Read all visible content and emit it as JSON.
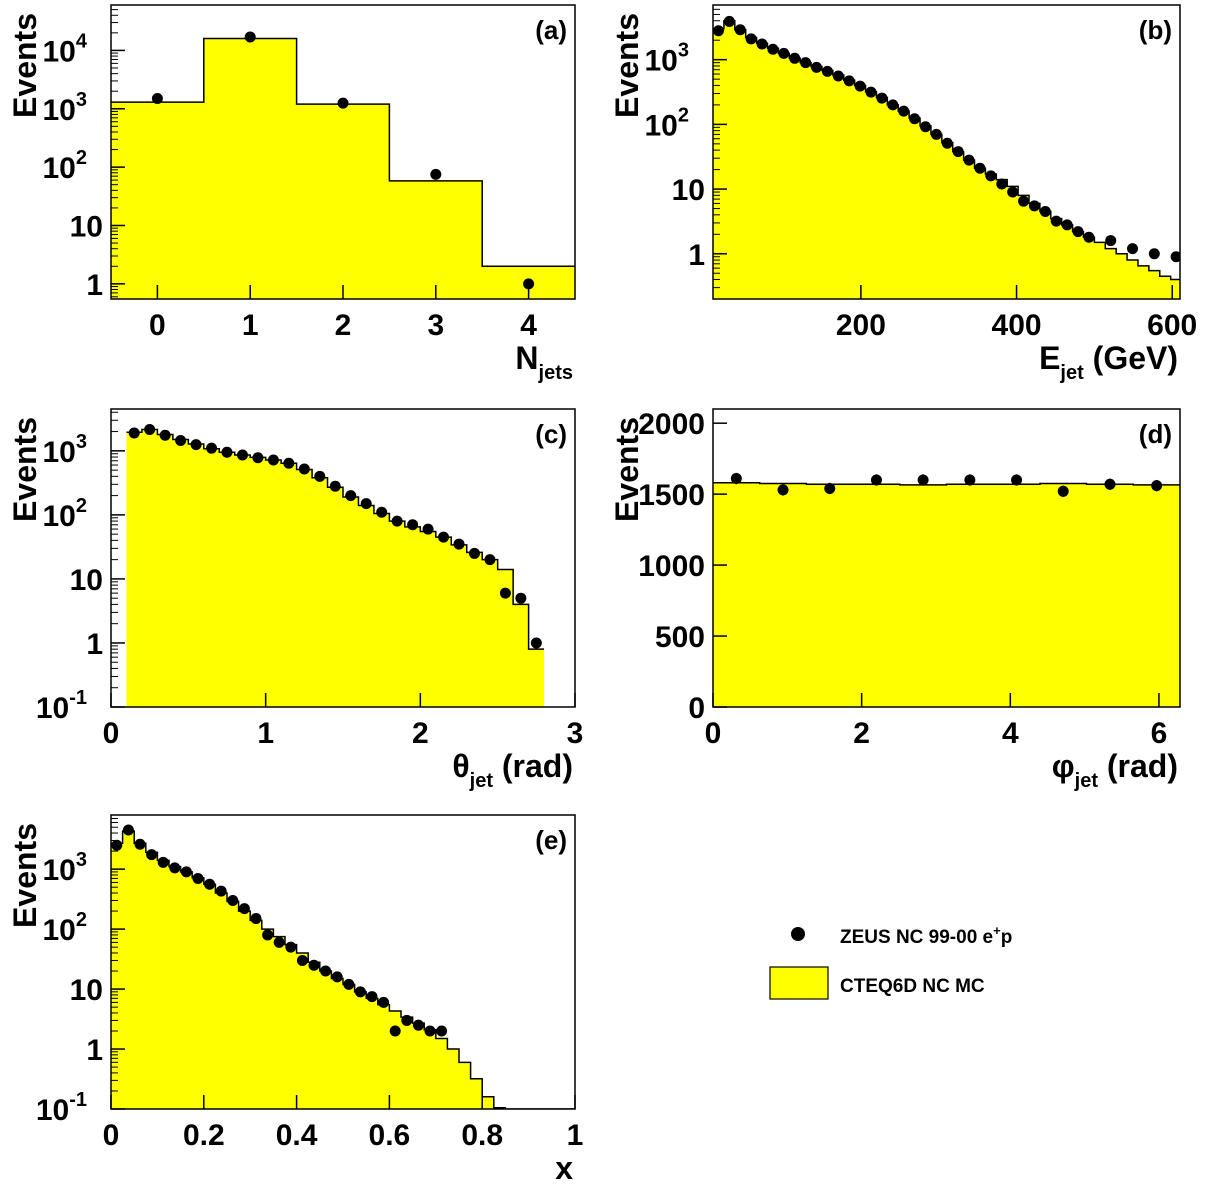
{
  "colors": {
    "mc_fill": "#ffff00",
    "mc_line": "#000000",
    "data_marker": "#000000",
    "frame": "#000000"
  },
  "legend": {
    "placement": "right of panel (e)",
    "data_label": "ZEUS NC 99-00 e",
    "data_label_sup": "+",
    "data_label_tail": "p",
    "mc_label": "CTEQ6D NC MC"
  },
  "chart_data": [
    {
      "id": "a",
      "type": "bar",
      "panel_label": "(a)",
      "xlabel": "N",
      "xlabel_sub": "jets",
      "xlabel_tail": "",
      "ylabel": "Events",
      "yscale": "log",
      "xlim": [
        -0.5,
        4.5
      ],
      "ylim": [
        0.55,
        60000
      ],
      "xticks": [
        "0",
        "1",
        "2",
        "3",
        "4"
      ],
      "yticks": [
        {
          "v": 1,
          "t": "1"
        },
        {
          "v": 10,
          "t": "10"
        },
        {
          "v": 100,
          "t": "10",
          "e": "2"
        },
        {
          "v": 1000,
          "t": "10",
          "e": "3"
        },
        {
          "v": 10000,
          "t": "10",
          "e": "4"
        }
      ],
      "mc": {
        "edges": [
          -0.5,
          0.5,
          1.5,
          2.5,
          3.5,
          4.5
        ],
        "values": [
          1300,
          16000,
          1200,
          58,
          2
        ]
      },
      "data": {
        "x": [
          0,
          1,
          2,
          3,
          4
        ],
        "y": [
          1500,
          17000,
          1250,
          75,
          1
        ],
        "err_lo": [
          0,
          0,
          0,
          0,
          0
        ],
        "err_hi": [
          0,
          0,
          0,
          0,
          0
        ]
      }
    },
    {
      "id": "b",
      "type": "bar",
      "panel_label": "(b)",
      "xlabel": "E",
      "xlabel_sub": "jet",
      "xlabel_tail": " (GeV)",
      "ylabel": "Events",
      "yscale": "log",
      "xlim": [
        10,
        610
      ],
      "ylim": [
        0.2,
        7000
      ],
      "xticks": [
        "200",
        "400",
        "600"
      ],
      "yticks": [
        {
          "v": 1,
          "t": "1"
        },
        {
          "v": 10,
          "t": "10"
        },
        {
          "v": 100,
          "t": "10",
          "e": "2"
        },
        {
          "v": 1000,
          "t": "10",
          "e": "3"
        }
      ],
      "mc": {
        "edges": [
          10,
          24,
          38,
          52,
          66,
          80,
          94,
          108,
          122,
          136,
          150,
          164,
          178,
          192,
          206,
          220,
          234,
          248,
          262,
          276,
          290,
          304,
          318,
          332,
          346,
          360,
          374,
          388,
          402,
          416,
          430,
          444,
          458,
          472,
          486,
          500,
          514,
          528,
          542,
          556,
          570,
          584,
          598,
          610
        ],
        "values": [
          3000,
          4000,
          2900,
          2200,
          1800,
          1500,
          1250,
          1050,
          900,
          780,
          680,
          580,
          480,
          400,
          320,
          260,
          200,
          160,
          125,
          95,
          70,
          52,
          38,
          28,
          21,
          17,
          14,
          11,
          8,
          6,
          4.5,
          3.5,
          2.8,
          2.2,
          1.8,
          1.5,
          1.2,
          1.0,
          0.8,
          0.65,
          0.55,
          0.45,
          0.4
        ]
      },
      "data": {
        "x": [
          17,
          31,
          45,
          59,
          73,
          87,
          101,
          115,
          129,
          143,
          157,
          171,
          185,
          199,
          213,
          227,
          241,
          255,
          269,
          283,
          297,
          311,
          325,
          339,
          353,
          367,
          381,
          395,
          409,
          423,
          437,
          451,
          465,
          479,
          493,
          521,
          549,
          577,
          605
        ],
        "y": [
          2800,
          3900,
          2900,
          2100,
          1750,
          1450,
          1250,
          1050,
          900,
          760,
          660,
          560,
          470,
          390,
          315,
          255,
          200,
          160,
          122,
          92,
          70,
          51,
          38,
          28,
          21,
          16,
          12,
          9,
          6.5,
          5.5,
          4.5,
          3.2,
          2.8,
          2.2,
          1.8,
          1.6,
          1.2,
          1.0,
          0.9
        ],
        "err_lo": [
          0,
          0,
          0,
          0,
          0,
          0,
          0,
          0,
          0,
          0,
          0,
          0,
          0,
          0,
          0,
          0,
          0,
          0,
          0,
          0,
          0,
          0,
          0,
          0,
          0,
          0,
          0,
          0,
          0,
          0,
          0,
          0,
          0,
          0,
          0,
          0,
          0,
          0,
          0
        ],
        "err_hi": [
          0,
          0,
          0,
          0,
          0,
          0,
          0,
          0,
          0,
          0,
          0,
          0,
          0,
          0,
          0,
          0,
          0,
          0,
          0,
          0,
          0,
          0,
          0,
          0,
          0,
          0,
          0,
          0,
          0,
          0,
          0,
          0,
          0,
          0,
          0,
          0,
          0,
          0,
          0
        ]
      }
    },
    {
      "id": "c",
      "type": "bar",
      "panel_label": "(c)",
      "xlabel": "θ",
      "xlabel_sub": "jet",
      "xlabel_tail": " (rad)",
      "ylabel": "Events",
      "yscale": "log",
      "xlim": [
        0,
        3
      ],
      "ylim": [
        0.1,
        4500
      ],
      "xticks": [
        "0",
        "1",
        "2",
        "3"
      ],
      "yticks": [
        {
          "v": 0.1,
          "t": "10",
          "e": "-1"
        },
        {
          "v": 1,
          "t": "1"
        },
        {
          "v": 10,
          "t": "10"
        },
        {
          "v": 100,
          "t": "10",
          "e": "2"
        },
        {
          "v": 1000,
          "t": "10",
          "e": "3"
        }
      ],
      "mc": {
        "edges": [
          0.1,
          0.2,
          0.3,
          0.4,
          0.5,
          0.6,
          0.7,
          0.8,
          0.9,
          1.0,
          1.1,
          1.2,
          1.3,
          1.4,
          1.5,
          1.6,
          1.7,
          1.8,
          1.9,
          2.0,
          2.1,
          2.2,
          2.3,
          2.4,
          2.5,
          2.6,
          2.7,
          2.8
        ],
        "values": [
          1950,
          2150,
          1800,
          1500,
          1280,
          1080,
          950,
          860,
          790,
          720,
          640,
          510,
          380,
          270,
          190,
          140,
          105,
          80,
          65,
          55,
          45,
          34,
          26,
          20,
          14,
          4,
          0.8
        ]
      },
      "data": {
        "x": [
          0.15,
          0.25,
          0.35,
          0.45,
          0.55,
          0.65,
          0.75,
          0.85,
          0.95,
          1.05,
          1.15,
          1.25,
          1.35,
          1.45,
          1.55,
          1.65,
          1.75,
          1.85,
          1.95,
          2.05,
          2.15,
          2.25,
          2.35,
          2.45,
          2.55,
          2.65,
          2.75
        ],
        "y": [
          1900,
          2150,
          1750,
          1450,
          1250,
          1100,
          950,
          860,
          780,
          720,
          640,
          520,
          400,
          280,
          200,
          150,
          110,
          80,
          70,
          60,
          45,
          35,
          25,
          20,
          6,
          5,
          1
        ],
        "err_lo": [
          0,
          0,
          0,
          0,
          0,
          0,
          0,
          0,
          0,
          0,
          0,
          0,
          0,
          0,
          0,
          0,
          0,
          0,
          0,
          0,
          0,
          0,
          0,
          0,
          0,
          0,
          0
        ],
        "err_hi": [
          0,
          0,
          0,
          0,
          0,
          0,
          0,
          0,
          0,
          0,
          0,
          0,
          0,
          0,
          0,
          0,
          0,
          0,
          0,
          0,
          0,
          0,
          0,
          0,
          0,
          0,
          0
        ]
      }
    },
    {
      "id": "d",
      "type": "bar",
      "panel_label": "(d)",
      "xlabel": "φ",
      "xlabel_sub": "jet",
      "xlabel_tail": " (rad)",
      "ylabel": "Events",
      "yscale": "linear",
      "xlim": [
        0,
        6.2832
      ],
      "ylim": [
        0,
        2100
      ],
      "xticks": [
        "0",
        "2",
        "4",
        "6"
      ],
      "yticks": [
        {
          "v": 0,
          "t": "0"
        },
        {
          "v": 500,
          "t": "500"
        },
        {
          "v": 1000,
          "t": "1000"
        },
        {
          "v": 1500,
          "t": "1500"
        },
        {
          "v": 2000,
          "t": "2000"
        }
      ],
      "mc": {
        "edges": [
          0,
          0.6283,
          1.2566,
          1.885,
          2.5133,
          3.1416,
          3.7699,
          4.3982,
          5.0265,
          5.6549,
          6.2832
        ],
        "values": [
          1580,
          1575,
          1570,
          1570,
          1565,
          1570,
          1570,
          1575,
          1570,
          1565
        ]
      },
      "data": {
        "x": [
          0.314,
          0.942,
          1.571,
          2.199,
          2.827,
          3.456,
          4.084,
          4.712,
          5.341,
          5.969
        ],
        "y": [
          1610,
          1530,
          1540,
          1600,
          1600,
          1600,
          1600,
          1520,
          1570,
          1560
        ],
        "err_lo": [
          40,
          40,
          40,
          40,
          40,
          40,
          40,
          40,
          40,
          40
        ],
        "err_hi": [
          40,
          40,
          40,
          40,
          40,
          40,
          40,
          40,
          40,
          40
        ]
      }
    },
    {
      "id": "e",
      "type": "bar",
      "panel_label": "(e)",
      "xlabel": "x",
      "xlabel_sub": "",
      "xlabel_tail": "",
      "ylabel": "Events",
      "yscale": "log",
      "xlim": [
        0,
        1
      ],
      "ylim": [
        0.1,
        8000
      ],
      "xticks": [
        "0",
        "0.2",
        "0.4",
        "0.6",
        "0.8",
        "1"
      ],
      "yticks": [
        {
          "v": 0.1,
          "t": "10",
          "e": "-1"
        },
        {
          "v": 1,
          "t": "1"
        },
        {
          "v": 10,
          "t": "10"
        },
        {
          "v": 100,
          "t": "10",
          "e": "2"
        },
        {
          "v": 1000,
          "t": "10",
          "e": "3"
        }
      ],
      "mc": {
        "edges": [
          0,
          0.025,
          0.05,
          0.075,
          0.1,
          0.125,
          0.15,
          0.175,
          0.2,
          0.225,
          0.25,
          0.275,
          0.3,
          0.325,
          0.35,
          0.375,
          0.4,
          0.425,
          0.45,
          0.475,
          0.5,
          0.525,
          0.55,
          0.575,
          0.6,
          0.625,
          0.65,
          0.675,
          0.7,
          0.725,
          0.75,
          0.775,
          0.8,
          0.825,
          0.85,
          0.875,
          0.9,
          0.925,
          0.95,
          0.975,
          1.0
        ],
        "values": [
          2700,
          4300,
          2700,
          1900,
          1400,
          1100,
          900,
          720,
          560,
          400,
          290,
          200,
          140,
          100,
          75,
          55,
          40,
          28,
          20,
          15,
          12,
          9,
          7,
          5.5,
          4.3,
          3.4,
          2.7,
          2.1,
          1.5,
          1.0,
          0.6,
          0.32,
          0.16,
          0.105,
          0.1,
          0.1,
          0.1,
          0.1,
          0.1,
          0.1
        ]
      },
      "data": {
        "x": [
          0.0125,
          0.0375,
          0.0625,
          0.0875,
          0.1125,
          0.1375,
          0.1625,
          0.1875,
          0.2125,
          0.2375,
          0.2625,
          0.2875,
          0.3125,
          0.3375,
          0.3625,
          0.3875,
          0.4125,
          0.4375,
          0.4625,
          0.4875,
          0.5125,
          0.5375,
          0.5625,
          0.5875,
          0.6125,
          0.6375,
          0.6625,
          0.6875,
          0.7125
        ],
        "y": [
          2500,
          4500,
          2600,
          1750,
          1300,
          1050,
          900,
          700,
          560,
          430,
          300,
          220,
          150,
          80,
          60,
          50,
          30,
          25,
          20,
          16,
          12,
          9,
          7.5,
          6,
          2,
          3,
          2.5,
          2,
          2
        ],
        "err_lo": [
          0,
          0,
          0,
          0,
          0,
          0,
          0,
          0,
          0,
          0,
          0,
          0,
          0,
          0,
          0,
          0,
          0,
          0,
          0,
          0,
          0,
          0,
          0,
          0,
          0,
          0,
          0,
          0,
          0
        ],
        "err_hi": [
          0,
          0,
          0,
          0,
          0,
          0,
          0,
          0,
          0,
          0,
          0,
          0,
          0,
          0,
          0,
          0,
          0,
          0,
          0,
          0,
          0,
          0,
          0,
          0,
          0,
          0,
          0,
          0,
          0
        ]
      }
    }
  ]
}
